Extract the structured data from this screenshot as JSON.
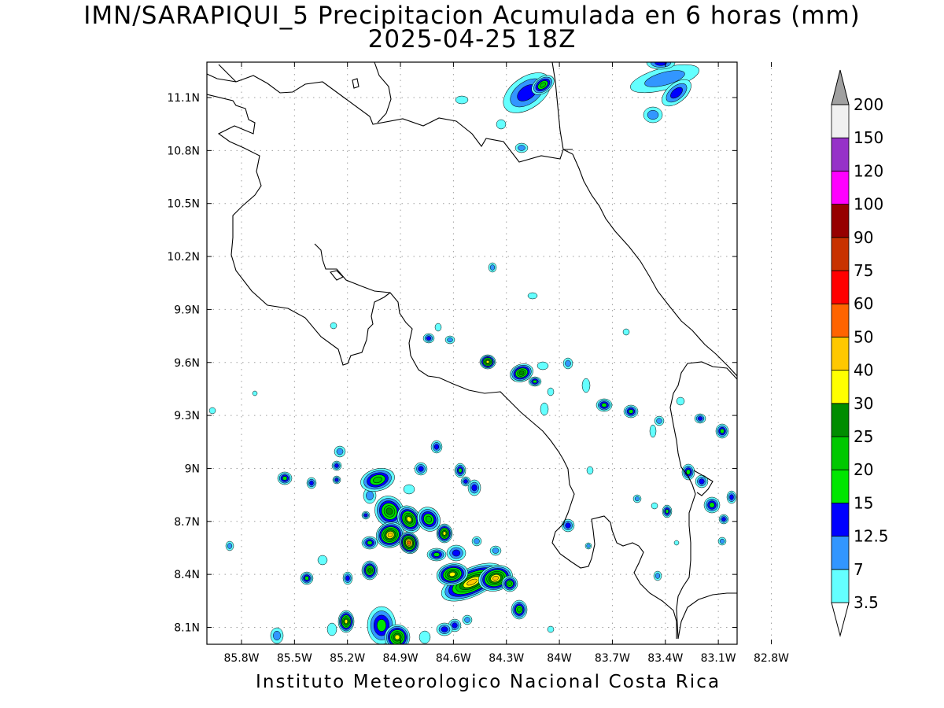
{
  "header": {
    "title": "IMN/SARAPIQUI_5 Precipitacion Acumulada en 6 horas (mm)",
    "subtitle": "2025-04-25 18Z"
  },
  "footer": {
    "credit": "Instituto Meteorologico Nacional Costa Rica"
  },
  "map": {
    "lon_ticks": [
      "85.8W",
      "85.5W",
      "85.2W",
      "84.9W",
      "84.6W",
      "84.3W",
      "84W",
      "83.7W",
      "83.4W",
      "83.1W",
      "82.8W"
    ],
    "lat_ticks": [
      "11.1N",
      "10.8N",
      "10.5N",
      "10.2N",
      "9.9N",
      "9.6N",
      "9.3N",
      "9N",
      "8.7N",
      "8.4N",
      "8.1N"
    ],
    "grid": true
  },
  "legend": {
    "labels": [
      "3.5",
      "7",
      "12.5",
      "15",
      "20",
      "25",
      "30",
      "40",
      "50",
      "60",
      "75",
      "90",
      "100",
      "120",
      "150",
      "200"
    ],
    "colors": [
      "#ffffff",
      "#64ffff",
      "#3296ff",
      "#0000ff",
      "#00e600",
      "#00c800",
      "#008c00",
      "#ffff00",
      "#ffc800",
      "#ff6400",
      "#ff0000",
      "#c83200",
      "#960000",
      "#ff00ff",
      "#9632c8",
      "#f0f0f0",
      "#a0a0a0"
    ]
  },
  "precip": {
    "colors": [
      "#64ffff",
      "#3296ff",
      "#0000ff",
      "#00e600",
      "#00c800",
      "#008c00",
      "#ffff00",
      "#ffc800",
      "#ff6400",
      "#ff0000"
    ]
  }
}
